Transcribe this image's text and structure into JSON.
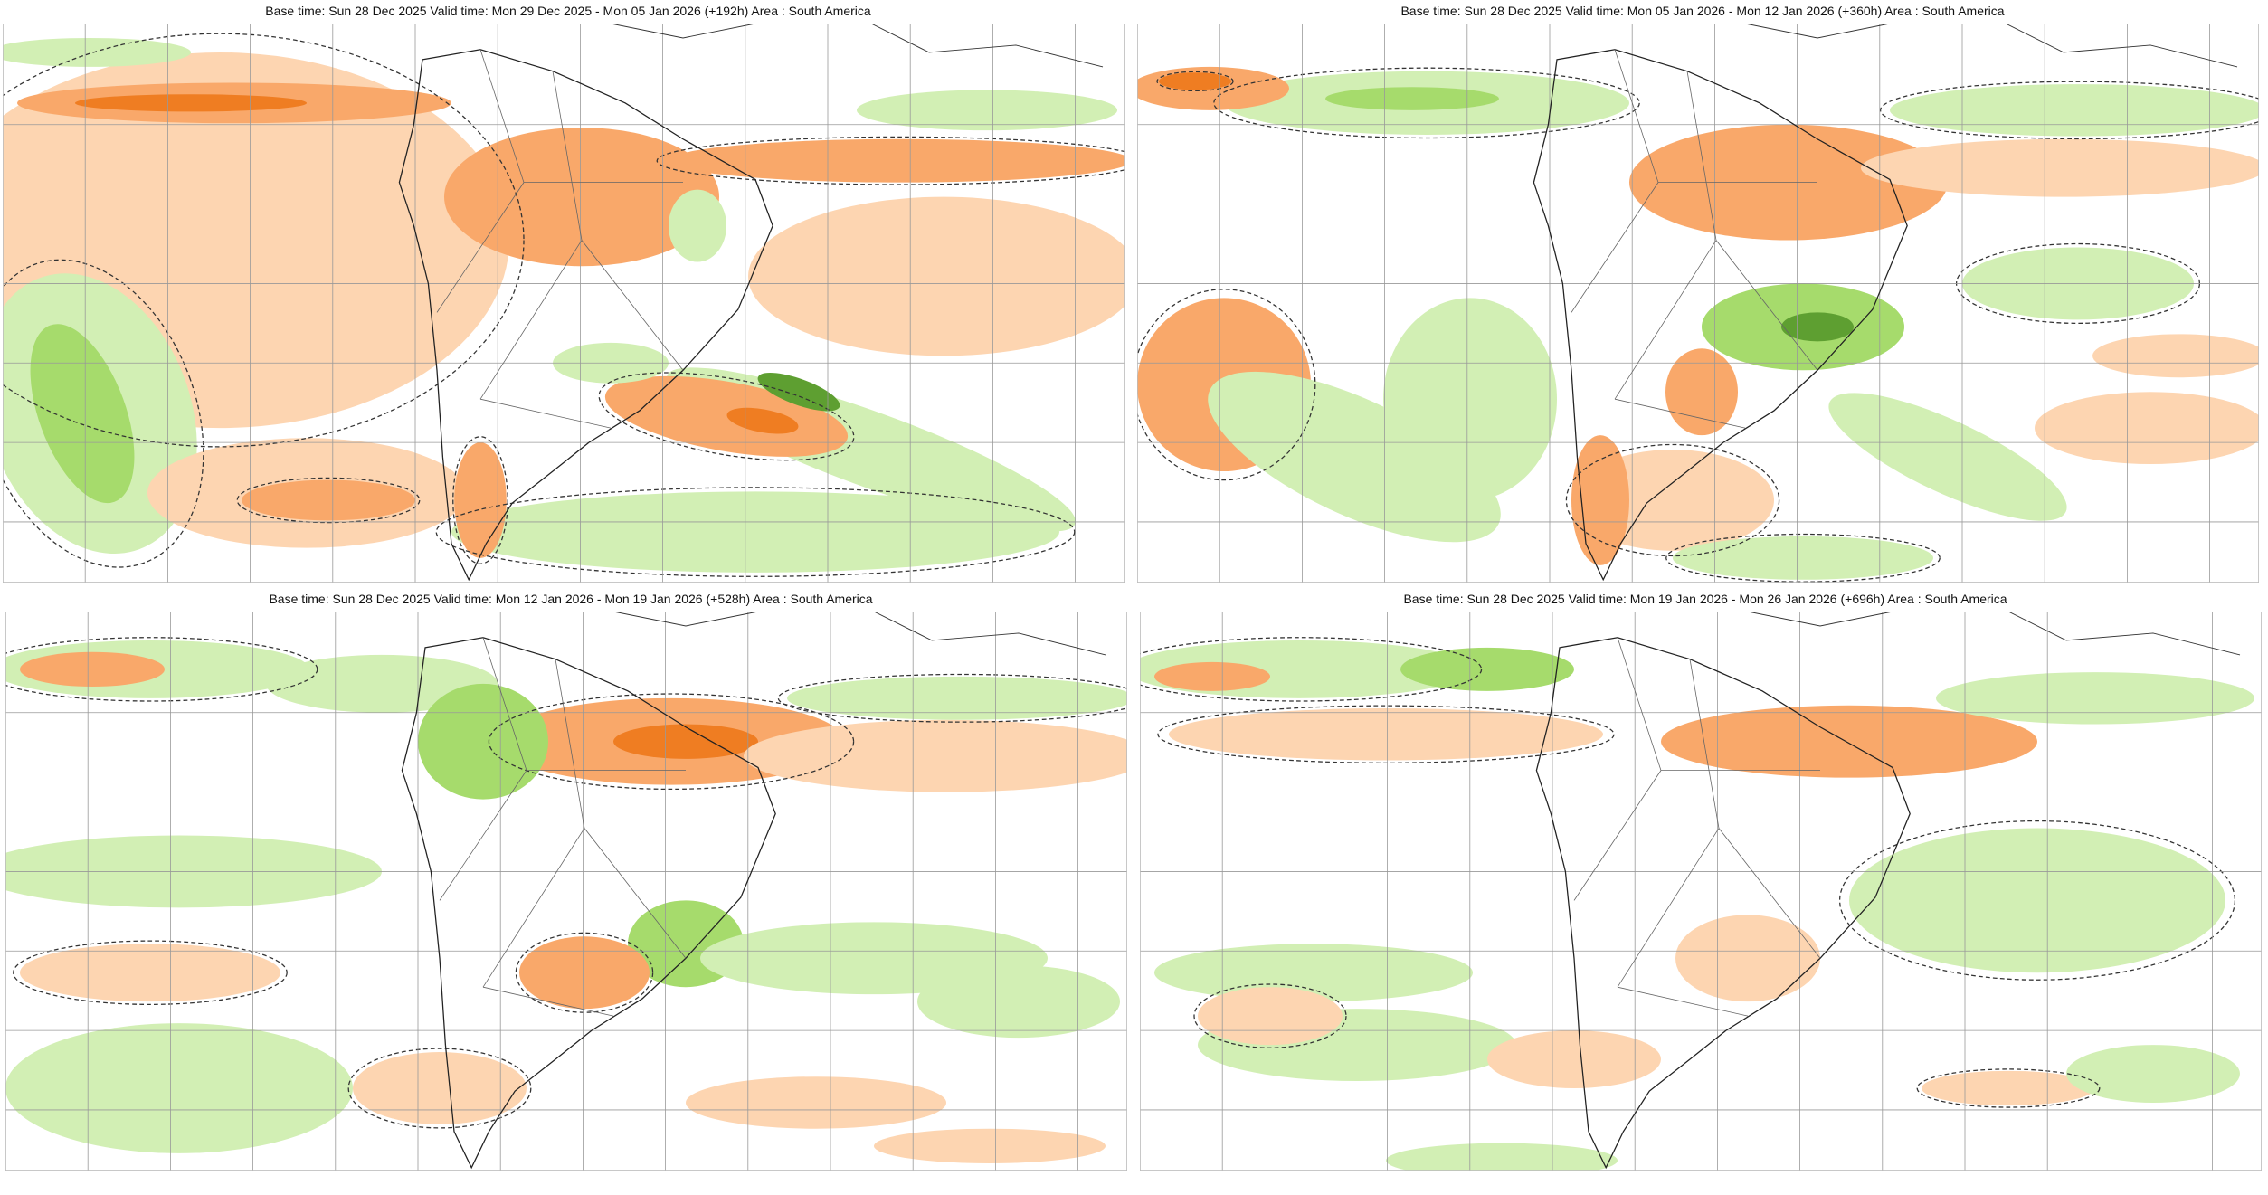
{
  "panels": [
    {
      "title": "Base time: Sun 28 Dec 2025 Valid time: Mon 29 Dec 2025 - Mon 05 Jan 2026 (+192h) Area : South America"
    },
    {
      "title": "Base time: Sun 28 Dec 2025 Valid time: Mon 05 Jan 2026 - Mon 12 Jan 2026 (+360h) Area : South America"
    },
    {
      "title": "Base time: Sun 28 Dec 2025 Valid time: Mon 12 Jan 2026 - Mon 19 Jan 2026 (+528h) Area : South America"
    },
    {
      "title": "Base time: Sun 28 Dec 2025 Valid time: Mon 19 Jan 2026 - Mon 26 Jan 2026 (+696h) Area : South America"
    }
  ]
}
